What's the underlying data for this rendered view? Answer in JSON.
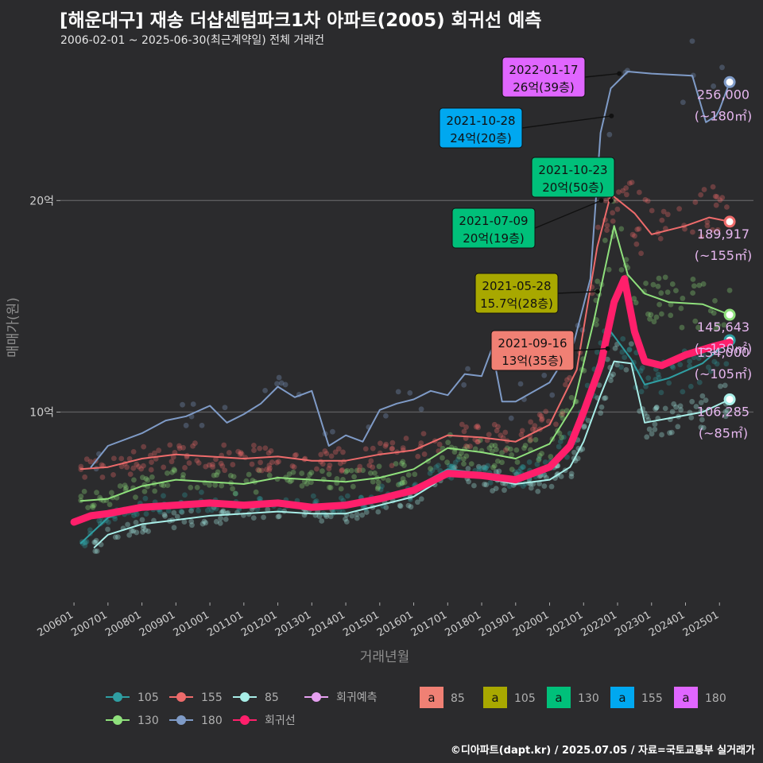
{
  "title": "[해운대구] 재송 더샵센텀파크1차 아파트(2005) 회귀선 예측",
  "subtitle": "2006-02-01 ~ 2025-06-30(최근계약일) 전체 거래건",
  "footer": "©디아파트(dapt.kr) / 2025.07.05 / 자료=국토교통부 실거래가",
  "chart_data": {
    "type": "line",
    "xlabel": "거래년월",
    "ylabel": "매매가(원)",
    "x_ticks": [
      "200601",
      "200701",
      "200801",
      "200901",
      "201001",
      "201101",
      "201201",
      "201301",
      "201401",
      "201501",
      "201601",
      "201701",
      "201801",
      "201901",
      "202001",
      "202101",
      "202201",
      "202301",
      "202401",
      "202501"
    ],
    "y_ticks": [
      {
        "value": 10,
        "label": "10억"
      },
      {
        "value": 20,
        "label": "20억"
      }
    ],
    "ylim": [
      1,
      27
    ],
    "xlim": [
      2005.6,
      2026.0
    ],
    "grid": true,
    "series": [
      {
        "name": "85",
        "color": "#a8eee8",
        "width": 2,
        "points": [
          [
            2006.6,
            3.6
          ],
          [
            2007.0,
            4.2
          ],
          [
            2008.0,
            4.7
          ],
          [
            2009.0,
            4.9
          ],
          [
            2010.0,
            5.1
          ],
          [
            2011.0,
            5.2
          ],
          [
            2012.0,
            5.3
          ],
          [
            2013.0,
            5.2
          ],
          [
            2014.0,
            5.2
          ],
          [
            2015.0,
            5.6
          ],
          [
            2016.0,
            6.0
          ],
          [
            2016.6,
            6.6
          ],
          [
            2017.0,
            7.2
          ],
          [
            2018.0,
            6.9
          ],
          [
            2019.0,
            6.6
          ],
          [
            2020.0,
            6.8
          ],
          [
            2020.6,
            7.4
          ],
          [
            2021.0,
            8.6
          ],
          [
            2021.5,
            10.8
          ],
          [
            2021.9,
            12.4
          ],
          [
            2022.4,
            12.3
          ],
          [
            2022.8,
            9.5
          ],
          [
            2023.5,
            9.7
          ],
          [
            2024.5,
            10.0
          ],
          [
            2025.3,
            10.6
          ]
        ]
      },
      {
        "name": "105",
        "color": "#2f9ea2",
        "width": 2,
        "points": [
          [
            2006.2,
            3.8
          ],
          [
            2007.0,
            5.0
          ],
          [
            2008.0,
            5.6
          ],
          [
            2009.0,
            5.7
          ],
          [
            2010.0,
            5.8
          ],
          [
            2011.0,
            5.7
          ],
          [
            2012.0,
            5.8
          ],
          [
            2013.0,
            5.6
          ],
          [
            2014.0,
            5.7
          ],
          [
            2015.0,
            6.0
          ],
          [
            2016.0,
            6.4
          ],
          [
            2017.0,
            7.3
          ],
          [
            2018.0,
            7.1
          ],
          [
            2019.0,
            6.9
          ],
          [
            2020.0,
            7.4
          ],
          [
            2020.8,
            9.0
          ],
          [
            2021.4,
            12.2
          ],
          [
            2021.8,
            13.8
          ],
          [
            2022.4,
            12.5
          ],
          [
            2022.8,
            11.3
          ],
          [
            2023.5,
            11.6
          ],
          [
            2024.5,
            12.3
          ],
          [
            2025.3,
            13.4
          ]
        ]
      },
      {
        "name": "130",
        "color": "#8fe07c",
        "width": 2,
        "points": [
          [
            2006.2,
            5.8
          ],
          [
            2007.0,
            5.9
          ],
          [
            2008.0,
            6.5
          ],
          [
            2009.0,
            6.8
          ],
          [
            2010.0,
            6.7
          ],
          [
            2011.0,
            6.6
          ],
          [
            2012.0,
            6.9
          ],
          [
            2013.0,
            6.8
          ],
          [
            2014.0,
            6.7
          ],
          [
            2015.0,
            6.9
          ],
          [
            2016.0,
            7.3
          ],
          [
            2017.0,
            8.3
          ],
          [
            2018.0,
            8.1
          ],
          [
            2019.0,
            7.8
          ],
          [
            2020.0,
            8.5
          ],
          [
            2020.7,
            10.3
          ],
          [
            2021.3,
            14.3
          ],
          [
            2021.9,
            18.8
          ],
          [
            2022.3,
            16.5
          ],
          [
            2022.8,
            15.6
          ],
          [
            2023.5,
            15.2
          ],
          [
            2024.5,
            15.1
          ],
          [
            2025.3,
            14.6
          ]
        ]
      },
      {
        "name": "155",
        "color": "#ee6b6b",
        "width": 2,
        "points": [
          [
            2006.2,
            7.3
          ],
          [
            2007.0,
            7.4
          ],
          [
            2008.0,
            7.8
          ],
          [
            2009.0,
            8.0
          ],
          [
            2010.0,
            7.9
          ],
          [
            2011.0,
            7.8
          ],
          [
            2012.0,
            7.9
          ],
          [
            2013.0,
            7.7
          ],
          [
            2014.0,
            7.7
          ],
          [
            2015.0,
            8.0
          ],
          [
            2016.0,
            8.2
          ],
          [
            2017.0,
            8.9
          ],
          [
            2018.0,
            8.8
          ],
          [
            2019.0,
            8.6
          ],
          [
            2020.0,
            9.4
          ],
          [
            2020.8,
            12.0
          ],
          [
            2021.4,
            17.8
          ],
          [
            2021.8,
            20.3
          ],
          [
            2022.5,
            19.4
          ],
          [
            2023.0,
            18.4
          ],
          [
            2024.0,
            18.8
          ],
          [
            2024.7,
            19.2
          ],
          [
            2025.3,
            19.0
          ]
        ]
      },
      {
        "name": "180",
        "color": "#7f9bc7",
        "width": 2,
        "points": [
          [
            2006.5,
            7.4
          ],
          [
            2007.0,
            8.4
          ],
          [
            2008.0,
            9.0
          ],
          [
            2008.7,
            9.6
          ],
          [
            2009.3,
            9.8
          ],
          [
            2010.0,
            10.3
          ],
          [
            2010.5,
            9.5
          ],
          [
            2011.0,
            9.9
          ],
          [
            2011.5,
            10.4
          ],
          [
            2012.0,
            11.2
          ],
          [
            2012.5,
            10.7
          ],
          [
            2013.0,
            11.0
          ],
          [
            2013.5,
            8.4
          ],
          [
            2014.0,
            8.9
          ],
          [
            2014.5,
            8.6
          ],
          [
            2015.0,
            10.1
          ],
          [
            2015.5,
            10.4
          ],
          [
            2016.0,
            10.6
          ],
          [
            2016.5,
            11.0
          ],
          [
            2017.0,
            10.8
          ],
          [
            2017.5,
            11.8
          ],
          [
            2018.0,
            11.7
          ],
          [
            2018.3,
            13.0
          ],
          [
            2018.6,
            10.5
          ],
          [
            2019.0,
            10.5
          ],
          [
            2020.0,
            11.4
          ],
          [
            2020.7,
            13.2
          ],
          [
            2021.2,
            16.3
          ],
          [
            2021.5,
            23.2
          ],
          [
            2021.8,
            25.3
          ],
          [
            2022.3,
            26.1
          ],
          [
            2023.0,
            26.0
          ],
          [
            2024.2,
            25.9
          ],
          [
            2024.6,
            23.7
          ],
          [
            2024.9,
            24.0
          ],
          [
            2025.0,
            24.3
          ],
          [
            2025.3,
            25.6
          ]
        ]
      },
      {
        "name": "회귀선",
        "color": "#ff1f6b",
        "width": 9,
        "points": [
          [
            2006.0,
            4.8
          ],
          [
            2006.5,
            5.1
          ],
          [
            2007.0,
            5.2
          ],
          [
            2008.0,
            5.5
          ],
          [
            2009.0,
            5.6
          ],
          [
            2010.0,
            5.7
          ],
          [
            2011.0,
            5.6
          ],
          [
            2012.0,
            5.7
          ],
          [
            2013.0,
            5.5
          ],
          [
            2014.0,
            5.6
          ],
          [
            2015.0,
            5.9
          ],
          [
            2016.0,
            6.3
          ],
          [
            2017.0,
            7.1
          ],
          [
            2018.0,
            7.0
          ],
          [
            2019.0,
            6.8
          ],
          [
            2020.0,
            7.4
          ],
          [
            2020.6,
            8.4
          ],
          [
            2021.0,
            10.0
          ],
          [
            2021.5,
            12.2
          ],
          [
            2021.9,
            15.2
          ],
          [
            2022.2,
            16.3
          ],
          [
            2022.5,
            13.8
          ],
          [
            2022.8,
            12.4
          ],
          [
            2023.3,
            12.2
          ],
          [
            2024.0,
            12.7
          ],
          [
            2024.8,
            13.1
          ],
          [
            2025.3,
            13.3
          ]
        ]
      }
    ],
    "end_labels": [
      {
        "value": "256,000",
        "area": "(~180㎡)",
        "y": 25.6
      },
      {
        "value": "189,917",
        "area": "(~155㎡)",
        "y": 19.0
      },
      {
        "value": "145,643",
        "area": "(~130㎡)",
        "y": 14.6
      },
      {
        "value": "134,000",
        "area": "(~105㎡)",
        "y": 13.4
      },
      {
        "value": "106,285",
        "area": "(~85㎡)",
        "y": 10.6
      }
    ],
    "annotations": [
      {
        "date": "2022-01-17",
        "price": "26억(39층)",
        "color": "#e066ff",
        "area": "180",
        "x": 2022.05,
        "y": 26.0
      },
      {
        "date": "2021-10-28",
        "price": "24억(20층)",
        "color": "#00a8f0",
        "area": "155",
        "x": 2021.82,
        "y": 24.0
      },
      {
        "date": "2021-10-23",
        "price": "20억(50층)",
        "color": "#00c07a",
        "area": "130",
        "x": 2021.81,
        "y": 20.0
      },
      {
        "date": "2021-07-09",
        "price": "20억(19층)",
        "color": "#00c07a",
        "area": "130",
        "x": 2021.52,
        "y": 20.0
      },
      {
        "date": "2021-05-28",
        "price": "15.7억(28층)",
        "color": "#a8a800",
        "area": "105",
        "x": 2021.41,
        "y": 15.7
      },
      {
        "date": "2021-09-16",
        "price": "13억(35층)",
        "color": "#f08074",
        "area": "85",
        "x": 2021.71,
        "y": 13.0
      }
    ],
    "legend": {
      "placement": "bottom",
      "lines": [
        {
          "label": "105",
          "color": "#2f9ea2"
        },
        {
          "label": "155",
          "color": "#ee6b6b"
        },
        {
          "label": "85",
          "color": "#a8eee8"
        },
        {
          "label": "회귀예측",
          "color": "#e6a0f0"
        },
        {
          "label": "130",
          "color": "#8fe07c"
        },
        {
          "label": "180",
          "color": "#7f9bc7"
        },
        {
          "label": "회귀선",
          "color": "#ff1f6b"
        }
      ],
      "boxes_letter": "a",
      "boxes": [
        {
          "label": "85",
          "color": "#f08074"
        },
        {
          "label": "105",
          "color": "#a8a800"
        },
        {
          "label": "130",
          "color": "#00c07a"
        },
        {
          "label": "155",
          "color": "#00a8f0"
        },
        {
          "label": "180",
          "color": "#e066ff"
        }
      ]
    }
  }
}
